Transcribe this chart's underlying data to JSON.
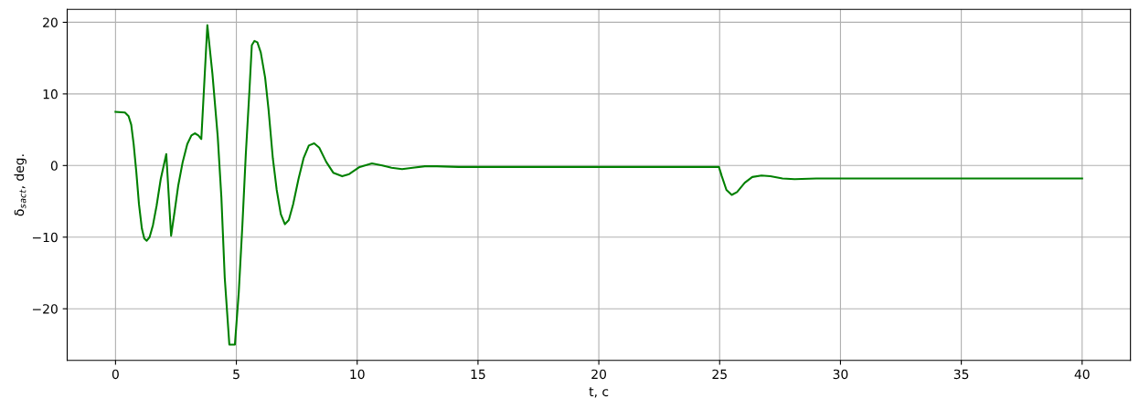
{
  "chart_data": {
    "type": "line",
    "xlabel": "t, c",
    "ylabel": "δ$_{s}$$_{act}$, deg.",
    "series": [
      {
        "color": "#008000",
        "x": [
          0,
          0.39,
          0.54,
          0.65,
          0.75,
          0.86,
          0.97,
          1.09,
          1.19,
          1.29,
          1.41,
          1.55,
          1.7,
          1.87,
          2.1,
          2.3,
          2.45,
          2.59,
          2.78,
          2.97,
          3.14,
          3.28,
          3.43,
          3.55,
          3.8,
          4.01,
          4.23,
          4.38,
          4.52,
          4.71,
          4.94,
          5.1,
          5.25,
          5.39,
          5.54,
          5.64,
          5.75,
          5.87,
          6.01,
          6.19,
          6.33,
          6.51,
          6.67,
          6.84,
          7.01,
          7.17,
          7.35,
          7.57,
          7.78,
          8.0,
          8.22,
          8.43,
          8.72,
          9.01,
          9.38,
          9.67,
          10.1,
          10.61,
          11.04,
          11.42,
          11.86,
          12.3,
          12.8,
          13.3,
          14.2,
          15,
          20,
          24.97,
          25.09,
          25.28,
          25.5,
          25.72,
          26.04,
          26.35,
          26.73,
          27.1,
          27.6,
          28.1,
          29.0,
          30.0,
          35,
          40
        ],
        "values": [
          7.5,
          7.4,
          6.9,
          5.7,
          3.0,
          -0.9,
          -5.4,
          -8.8,
          -10.2,
          -10.5,
          -10.0,
          -8.3,
          -5.6,
          -1.9,
          1.6,
          -9.8,
          -6.3,
          -2.9,
          0.5,
          3.0,
          4.2,
          4.5,
          4.2,
          3.7,
          19.6,
          12.8,
          4.0,
          -4.4,
          -15.7,
          -25,
          -25,
          -17.7,
          -8.3,
          1.5,
          10.4,
          16.8,
          17.4,
          17.2,
          15.8,
          12.3,
          7.9,
          1.0,
          -3.4,
          -6.8,
          -8.2,
          -7.6,
          -5.4,
          -1.9,
          1.0,
          2.8,
          3.1,
          2.5,
          0.5,
          -1.0,
          -1.5,
          -1.2,
          -0.2,
          0.3,
          0.0,
          -0.3,
          -0.5,
          -0.3,
          -0.1,
          -0.1,
          -0.2,
          -0.2,
          -0.2,
          -0.2,
          -1.5,
          -3.4,
          -4.1,
          -3.7,
          -2.4,
          -1.6,
          -1.4,
          -1.5,
          -1.8,
          -1.9,
          -1.8,
          -1.8,
          -1.8,
          -1.8
        ]
      }
    ],
    "xlim": [
      -2,
      42
    ],
    "ylim": [
      -27.2,
      21.8
    ],
    "xticks": [
      0,
      5,
      10,
      15,
      20,
      25,
      30,
      35,
      40
    ],
    "yticks": [
      {
        "value": -20,
        "label": "−20"
      },
      {
        "value": -10,
        "label": "−10"
      },
      0,
      10,
      20
    ],
    "grid": true,
    "line_style": "solid"
  }
}
